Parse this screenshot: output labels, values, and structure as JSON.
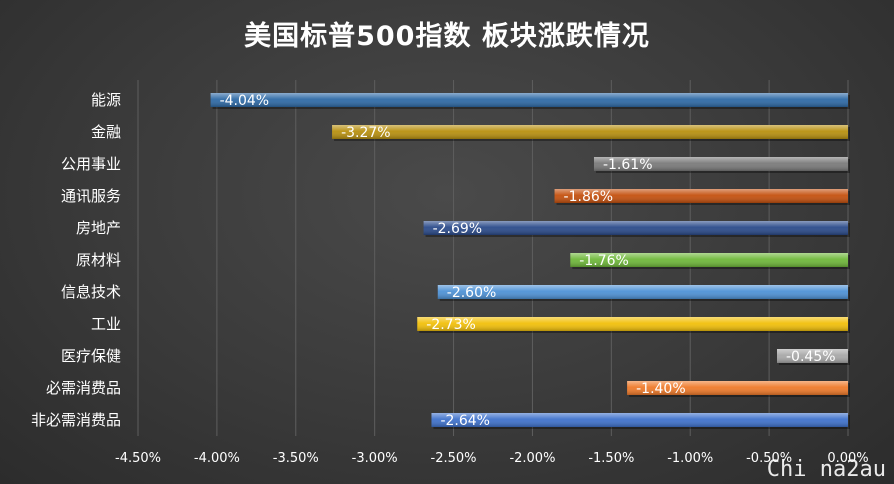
{
  "title": "美国标普500指数 板块涨跌情况",
  "watermark": "Chi na2au",
  "chart_data": {
    "type": "bar",
    "orientation": "horizontal",
    "title": "美国标普500指数 板块涨跌情况",
    "categories": [
      "能源",
      "金融",
      "公用事业",
      "通讯服务",
      "房地产",
      "原材料",
      "信息技术",
      "工业",
      "医疗保健",
      "必需消费品",
      "非必需消费品"
    ],
    "values": [
      -4.04,
      -3.27,
      -1.61,
      -1.86,
      -2.69,
      -1.76,
      -2.6,
      -2.73,
      -0.45,
      -1.4,
      -2.64
    ],
    "data_labels": [
      "-4.04%",
      "-3.27%",
      "-1.61%",
      "-1.86%",
      "-2.69%",
      "-1.76%",
      "-2.60%",
      "-2.73%",
      "-0.45%",
      "-1.40%",
      "-2.64%"
    ],
    "colors": [
      "#2e6aa6",
      "#b8900f",
      "#7a7a7a",
      "#c4500e",
      "#2a4a8a",
      "#6fb83a",
      "#4e92d6",
      "#f2c00a",
      "#a8a8a8",
      "#ef7a2a",
      "#3f72cc"
    ],
    "xlim": [
      -4.5,
      0
    ],
    "x_ticks": [
      -4.5,
      -4.0,
      -3.5,
      -3.0,
      -2.5,
      -2.0,
      -1.5,
      -1.0,
      -0.5,
      0.0
    ],
    "x_tick_labels": [
      "-4.50%",
      "-4.00%",
      "-3.50%",
      "-3.00%",
      "-2.50%",
      "-2.00%",
      "-1.50%",
      "-1.00%",
      "-0.50%",
      "0.00%"
    ],
    "grid": true,
    "legend": "none"
  }
}
